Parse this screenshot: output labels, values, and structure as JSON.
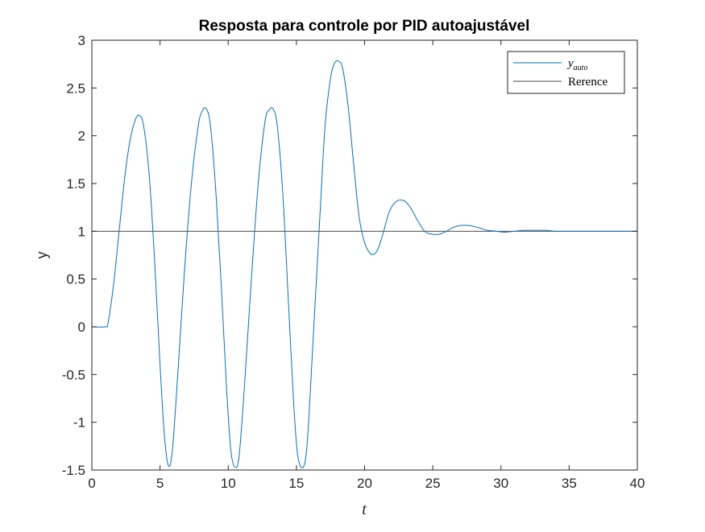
{
  "chart_data": {
    "type": "line",
    "title": "Resposta para controle por PID autoajustável",
    "xlabel": "t",
    "ylabel": "y",
    "xlim": [
      0,
      40
    ],
    "ylim": [
      -1.5,
      3
    ],
    "xticks": [
      "0",
      "5",
      "10",
      "15",
      "20",
      "25",
      "30",
      "35",
      "40"
    ],
    "yticks": [
      "-1.5",
      "-1",
      "-0.5",
      "0",
      "0.5",
      "1",
      "1.5",
      "2",
      "2.5",
      "3"
    ],
    "grid": false,
    "legend_position": "top-right",
    "series": [
      {
        "name": "y",
        "name_subscript": "auto",
        "color": "#0072BD",
        "x": [
          0,
          1.0,
          1.2,
          1.6,
          2.0,
          2.4,
          2.8,
          3.2,
          3.5,
          3.8,
          4.2,
          4.6,
          5.0,
          5.3,
          5.6,
          5.9,
          6.3,
          6.8,
          7.3,
          7.8,
          8.1,
          8.4,
          8.7,
          9.1,
          9.5,
          9.9,
          10.2,
          10.5,
          10.8,
          11.2,
          11.7,
          12.2,
          12.7,
          13.0,
          13.3,
          13.6,
          14.0,
          14.4,
          14.8,
          15.1,
          15.5,
          15.8,
          16.2,
          16.7,
          17.1,
          17.5,
          17.8,
          18.1,
          18.4,
          18.8,
          19.2,
          19.6,
          20.0,
          20.4,
          20.7,
          21.0,
          21.4,
          21.8,
          22.3,
          22.9,
          23.4,
          23.9,
          24.4,
          24.9,
          25.5,
          26.0,
          26.5,
          27.0,
          27.7,
          28.3,
          29.0,
          29.7,
          30.3,
          31.0,
          31.7,
          32.5,
          33.3,
          34.0,
          35.0,
          36.0,
          37.0,
          38.0,
          39.0,
          40.0
        ],
        "y": [
          0,
          0,
          0.05,
          0.45,
          1.0,
          1.55,
          1.95,
          2.17,
          2.21,
          2.1,
          1.6,
          0.7,
          -0.4,
          -1.1,
          -1.45,
          -1.3,
          -0.5,
          0.6,
          1.5,
          2.1,
          2.26,
          2.28,
          2.1,
          1.4,
          0.4,
          -0.7,
          -1.3,
          -1.47,
          -1.35,
          -0.6,
          0.5,
          1.5,
          2.15,
          2.27,
          2.28,
          2.1,
          1.4,
          0.3,
          -0.8,
          -1.35,
          -1.47,
          -1.2,
          -0.2,
          1.1,
          2.1,
          2.6,
          2.76,
          2.78,
          2.7,
          2.3,
          1.7,
          1.15,
          0.88,
          0.77,
          0.76,
          0.82,
          1.0,
          1.2,
          1.31,
          1.32,
          1.24,
          1.11,
          1.0,
          0.97,
          0.97,
          1.0,
          1.04,
          1.06,
          1.06,
          1.04,
          1.01,
          1.0,
          0.99,
          1.0,
          1.01,
          1.01,
          1.01,
          1.0,
          1.0,
          1.0,
          1.0,
          1.0,
          1.0,
          1.0
        ]
      },
      {
        "name": "Rerence",
        "color": "#4d4d4d",
        "x": [
          0,
          40
        ],
        "y": [
          1,
          1
        ]
      }
    ]
  }
}
